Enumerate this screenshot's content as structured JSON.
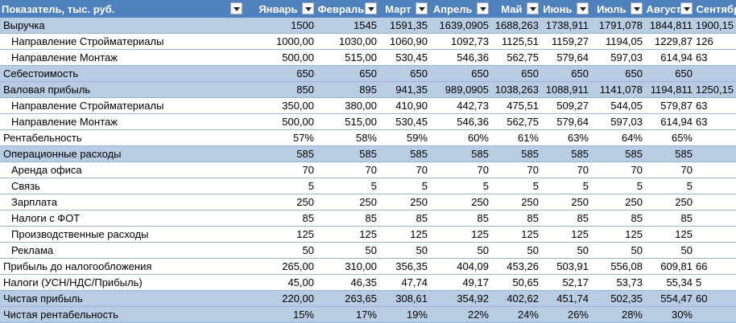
{
  "table": {
    "header": [
      "Показатель, тыс. руб.",
      "Январь",
      "Февраль",
      "Март",
      "Апрель",
      "Май",
      "Июнь",
      "Июль",
      "Август",
      "Сентябр"
    ],
    "rows": [
      {
        "label": "Выручка",
        "shaded": true,
        "indent": false,
        "cells": [
          "1500",
          "1545",
          "1591,35",
          "1639,0905",
          "1688,263",
          "1738,911",
          "1791,078",
          "1844,811",
          "1900,15"
        ]
      },
      {
        "label": "Направление Стройматериалы",
        "shaded": false,
        "indent": true,
        "cells": [
          "1000,00",
          "1030,00",
          "1060,90",
          "1092,73",
          "1125,51",
          "1159,27",
          "1194,05",
          "1229,87",
          "126"
        ]
      },
      {
        "label": "Направление Монтаж",
        "shaded": false,
        "indent": true,
        "cells": [
          "500,00",
          "515,00",
          "530,45",
          "546,36",
          "562,75",
          "579,64",
          "597,03",
          "614,94",
          "63"
        ]
      },
      {
        "label": "Себестоимость",
        "shaded": true,
        "indent": false,
        "cells": [
          "650",
          "650",
          "650",
          "650",
          "650",
          "650",
          "650",
          "650",
          null
        ]
      },
      {
        "label": "Валовая прибыль",
        "shaded": true,
        "indent": false,
        "cells": [
          "850",
          "895",
          "941,35",
          "989,0905",
          "1038,263",
          "1088,911",
          "1141,078",
          "1194,811",
          "1250,15"
        ]
      },
      {
        "label": "Направление Стройматериалы",
        "shaded": false,
        "indent": true,
        "cells": [
          "350,00",
          "380,00",
          "410,90",
          "442,73",
          "475,51",
          "509,27",
          "544,05",
          "579,87",
          "63"
        ]
      },
      {
        "label": "Направление Монтаж",
        "shaded": false,
        "indent": true,
        "cells": [
          "500,00",
          "515,00",
          "530,45",
          "546,36",
          "562,75",
          "579,64",
          "597,03",
          "614,94",
          "63"
        ]
      },
      {
        "label": "Рентабельность",
        "shaded": false,
        "indent": false,
        "cells": [
          "57%",
          "58%",
          "59%",
          "60%",
          "61%",
          "63%",
          "64%",
          "65%",
          null
        ]
      },
      {
        "label": "Операционные расходы",
        "shaded": true,
        "indent": false,
        "cells": [
          "585",
          "585",
          "585",
          "585",
          "585",
          "585",
          "585",
          "585",
          null
        ]
      },
      {
        "label": "Аренда офиса",
        "shaded": false,
        "indent": true,
        "cells": [
          "70",
          "70",
          "70",
          "70",
          "70",
          "70",
          "70",
          "70",
          null
        ]
      },
      {
        "label": "Связь",
        "shaded": false,
        "indent": true,
        "cells": [
          "5",
          "5",
          "5",
          "5",
          "5",
          "5",
          "5",
          "5",
          null
        ]
      },
      {
        "label": "Зарплата",
        "shaded": false,
        "indent": true,
        "cells": [
          "250",
          "250",
          "250",
          "250",
          "250",
          "250",
          "250",
          "250",
          null
        ]
      },
      {
        "label": "Налоги с ФОТ",
        "shaded": false,
        "indent": true,
        "cells": [
          "85",
          "85",
          "85",
          "85",
          "85",
          "85",
          "85",
          "85",
          null
        ]
      },
      {
        "label": "Производственные расходы",
        "shaded": false,
        "indent": true,
        "cells": [
          "125",
          "125",
          "125",
          "125",
          "125",
          "125",
          "125",
          "125",
          null
        ]
      },
      {
        "label": "Реклама",
        "shaded": false,
        "indent": true,
        "cells": [
          "50",
          "50",
          "50",
          "50",
          "50",
          "50",
          "50",
          "50",
          null
        ]
      },
      {
        "label": "Прибыль до налогообложения",
        "shaded": false,
        "indent": false,
        "cells": [
          "265,00",
          "310,00",
          "356,35",
          "404,09",
          "453,26",
          "503,91",
          "556,08",
          "609,81",
          "66"
        ]
      },
      {
        "label": "Налоги (УСН/НДС/Прибыль)",
        "shaded": false,
        "indent": false,
        "cells": [
          "45,00",
          "46,35",
          "47,74",
          "49,17",
          "50,65",
          "52,17",
          "53,73",
          "55,34",
          "5"
        ]
      },
      {
        "label": "Чистая прибыль",
        "shaded": true,
        "indent": false,
        "cells": [
          "220,00",
          "263,65",
          "308,61",
          "354,92",
          "402,62",
          "451,74",
          "502,35",
          "554,47",
          "60"
        ]
      },
      {
        "label": "Чистая рентабельность",
        "shaded": true,
        "indent": false,
        "cells": [
          "15%",
          "17%",
          "19%",
          "22%",
          "24%",
          "26%",
          "28%",
          "30%",
          null
        ]
      }
    ]
  }
}
